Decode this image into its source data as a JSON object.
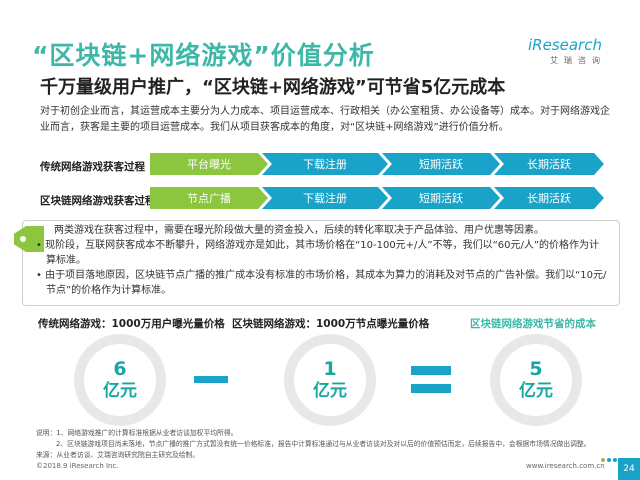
{
  "header": {
    "title": "“区块链+网络游戏”价值分析",
    "logo_main": "iResearch",
    "logo_sub": "艾瑞咨询",
    "subtitle": "千万量级用户推广，“区块链+网络游戏”可节省5亿元成本"
  },
  "intro": "对于初创企业而言，其运营成本主要分为人力成本、项目运营成本、行政相关（办公室租赁、办公设备等）成本。对于网络游戏企业而言，获客是主要的项目运营成本。我们从项目获客成本的角度，对“区块链+网络游戏”进行价值分析。",
  "flows": [
    {
      "label": "传统网络游戏获客过程",
      "steps": [
        "平台曝光",
        "下载注册",
        "短期活跃",
        "长期活跃"
      ]
    },
    {
      "label": "区块链网络游戏获客过程",
      "steps": [
        "节点广播",
        "下载注册",
        "短期活跃",
        "长期活跃"
      ]
    }
  ],
  "note": {
    "lead": "两类游戏在获客过程中，需要在曝光阶段做大量的资金投入，后续的转化率取决于产品体验、用户优惠等因素。",
    "bullets": [
      "• 现阶段，互联网获客成本不断攀升，网络游戏亦是如此，其市场价格在“10-100元+/人”不等，我们以“60元/人”的价格作为计算标准。",
      "• 由于项目落地原因，区块链节点广播的推广成本没有标准的市场价格，其成本为算力的消耗及对节点的广告补偿。我们以“10元/节点”的价格作为计算标准。"
    ]
  },
  "equation": {
    "left_label": "传统网络游戏：1000万用户曝光量价格",
    "middle_label": "区块链网络游戏：1000万节点曝光量价格",
    "right_label": "区块链网络游戏节省的成本",
    "left_num": "6",
    "left_unit": "亿元",
    "middle_num": "1",
    "middle_unit": "亿元",
    "right_num": "5",
    "right_unit": "亿元"
  },
  "footnote": [
    "说明：1、网络游戏推广的计算标准根据从业者访谈加权平均所得。",
    "2、区块链游戏项目尚未落地，节点广播的推广方式暂没有统一价格标准，报告中计算标准通过与从业者访谈对及对以后的价值预估而定，后续报告中，会根据市场情况做出调整。",
    "来源：从业者访谈、艾瑞咨询研究院自主研究及绘制。"
  ],
  "footer": {
    "copyright": "©2018.9 iResearch Inc.",
    "url": "www.iresearch.com.cn",
    "page": "24"
  },
  "colors": {
    "title": "#3db8a8",
    "chevron_green": "#8cc63e",
    "chevron_blue": "#1aa3c8",
    "circle_text": "#19a6a3",
    "operator": "#1aa3c8"
  }
}
